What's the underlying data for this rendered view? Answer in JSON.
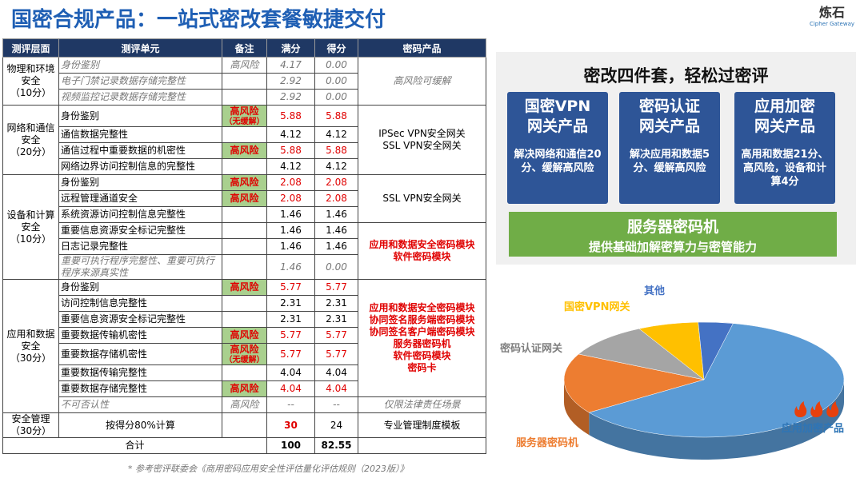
{
  "header": {
    "title": "国密合规产品：一站式密改套餐敏捷交付",
    "logo": "炼石",
    "logo_sub": "Cipher Gateway"
  },
  "table": {
    "header": [
      "测评层面",
      "测评单元",
      "备注",
      "满分",
      "得分",
      "密码产品"
    ],
    "groups": [
      {
        "layer": "物理和环境安全",
        "points": "（10分）",
        "rows": [
          {
            "unit": "身份鉴别",
            "note": "高风险",
            "full": "4.17",
            "score": "0.00",
            "muted": true
          },
          {
            "unit": "电子门禁记录数据存储完整性",
            "note": null,
            "full": "2.92",
            "score": "0.00",
            "muted": true
          },
          {
            "unit": "视频监控记录数据存储完整性",
            "note": null,
            "full": "2.92",
            "score": "0.00",
            "muted": true
          }
        ],
        "products": [
          {
            "lines": [
              "高风险可缓解"
            ],
            "muted": true
          },
          null,
          null
        ]
      },
      {
        "layer": "网络和通信安全",
        "points": "（20分）",
        "rows": [
          {
            "unit": "身份鉴别",
            "note": "高风险",
            "note_sub": "（无缓解）",
            "full": "5.88",
            "score": "5.88"
          },
          {
            "unit": "通信数据完整性",
            "note": null,
            "full": "4.12",
            "score": "4.12"
          },
          {
            "unit": "通信过程中重要数据的机密性",
            "note": "高风险",
            "full": "5.88",
            "score": "5.88"
          },
          {
            "unit": "网络边界访问控制信息的完整性",
            "note": null,
            "full": "4.12",
            "score": "4.12"
          }
        ],
        "products": [
          {
            "lines": [
              "IPSec VPN安全网关",
              "SSL VPN安全网关"
            ]
          },
          null,
          null,
          null
        ]
      },
      {
        "layer": "设备和计算安全",
        "points": "（10分）",
        "rows": [
          {
            "unit": "身份鉴别",
            "note": "高风险",
            "full": "2.08",
            "score": "2.08"
          },
          {
            "unit": "远程管理通道安全",
            "note": "高风险",
            "full": "2.08",
            "score": "2.08"
          },
          {
            "unit": "系统资源访问控制信息完整性",
            "note": null,
            "full": "1.46",
            "score": "1.46"
          },
          {
            "unit": "重要信息资源安全标记完整性",
            "note": null,
            "full": "1.46",
            "score": "1.46"
          },
          {
            "unit": "日志记录完整性",
            "note": null,
            "full": "1.46",
            "score": "1.46"
          },
          {
            "unit": "重要可执行程序完整性、重要可执行程序来源真实性",
            "note": null,
            "full": "1.46",
            "score": "0.00",
            "muted": true
          }
        ],
        "products": [
          {
            "lines": [
              "SSL VPN安全网关"
            ]
          },
          null,
          null,
          {
            "lines": [
              "应用和数据安全密码模块",
              "软件密码模块"
            ],
            "color": "#e00000"
          },
          null,
          null
        ]
      },
      {
        "layer": "应用和数据安全",
        "points": "（30分）",
        "rows": [
          {
            "unit": "身份鉴别",
            "note": "高风险",
            "full": "5.77",
            "score": "5.77"
          },
          {
            "unit": "访问控制信息完整性",
            "note": null,
            "full": "2.31",
            "score": "2.31"
          },
          {
            "unit": "重要信息资源安全标记完整性",
            "note": null,
            "full": "2.31",
            "score": "2.31"
          },
          {
            "unit": "重要数据传输机密性",
            "note": "高风险",
            "full": "5.77",
            "score": "5.77"
          },
          {
            "unit": "重要数据存储机密性",
            "note": "高风险",
            "note_sub": "（无缓解）",
            "full": "5.77",
            "score": "5.77"
          },
          {
            "unit": "重要数据传输完整性",
            "note": null,
            "full": "4.04",
            "score": "4.04"
          },
          {
            "unit": "重要数据存储完整性",
            "note": "高风险",
            "full": "4.04",
            "score": "4.04"
          },
          {
            "unit": "不可否认性",
            "note": "高风险",
            "full": "--",
            "score": "--",
            "muted": true
          }
        ],
        "products": [
          {
            "lines": [
              "应用和数据安全密码模块",
              "协同签名服务端密码模块",
              "协同签名客户端密码模块",
              "服务器密码机",
              "软件密码模块",
              "密码卡"
            ],
            "color": "#e00000"
          },
          null,
          null,
          null,
          null,
          null,
          null,
          {
            "lines": [
              "仅限法律责任场景"
            ],
            "muted": true
          }
        ]
      },
      {
        "layer": "安全管理",
        "points": "（30分）",
        "rows": [
          {
            "unit": "按得分80%计算",
            "note": null,
            "full": "30",
            "score": "24",
            "full_color": "#e00000"
          }
        ],
        "products": [
          {
            "lines": [
              "专业管理制度模板"
            ]
          }
        ]
      }
    ],
    "total": {
      "label": "合计",
      "full": "100",
      "score": "82.55"
    }
  },
  "panel": {
    "title": "密改四件套，轻松过密评",
    "cards": [
      {
        "title": [
          "国密VPN",
          "网关产品"
        ],
        "desc": "解决网络和通信20分、缓解高风险"
      },
      {
        "title": [
          "密码认证",
          "网关产品"
        ],
        "desc": "解决应用和数据5分、缓解高风险"
      },
      {
        "title": [
          "应用加密",
          "网关产品"
        ],
        "desc": "高用和数据21分、高风险，设备和计算4分"
      }
    ],
    "server": {
      "title": "服务器密码机",
      "desc": "提供基础加解密算力与密管能力"
    }
  },
  "chart_data": {
    "type": "pie",
    "categories": [
      "应用加密产品",
      "服务器密码机",
      "密码认证网关",
      "国密VPN网关",
      "其他"
    ],
    "values": [
      62,
      17,
      10,
      7,
      4
    ],
    "colors": [
      "#5b9bd5",
      "#ed7d31",
      "#a5a5a5",
      "#ffc000",
      "#4472c4"
    ],
    "label_colors": [
      "#2e75b6",
      "#ed7d31",
      "#7f7f7f",
      "#ffc000",
      "#4472c4"
    ]
  },
  "footnote": "* 参考密评联委会《商用密码应用安全性评估量化评估规则（2023版）》"
}
